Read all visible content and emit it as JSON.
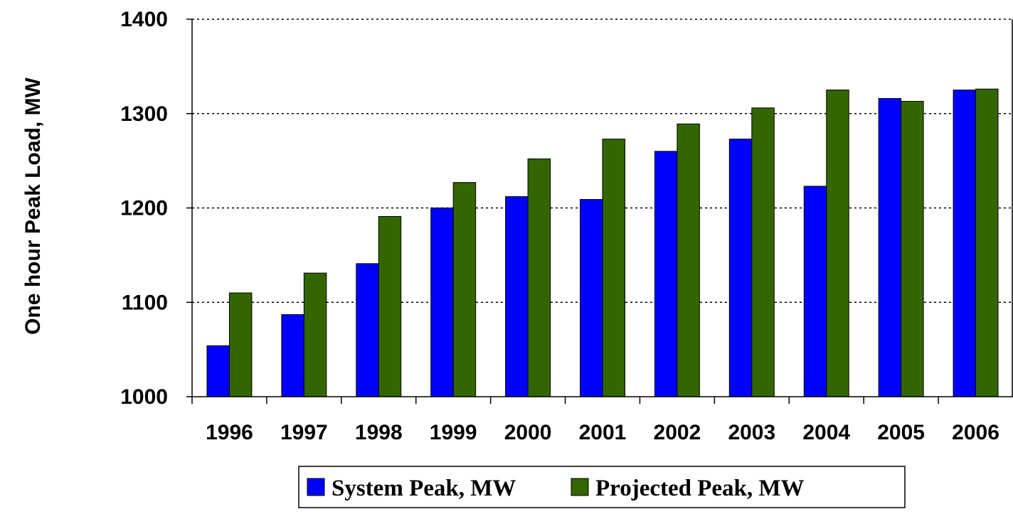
{
  "chart_data": {
    "type": "bar",
    "y_label": "One hour Peak Load, MW",
    "categories": [
      "1996",
      "1997",
      "1998",
      "1999",
      "2000",
      "2001",
      "2002",
      "2003",
      "2004",
      "2005",
      "2006"
    ],
    "series": [
      {
        "name": "System Peak, MW",
        "color": "#0000ff",
        "values": [
          1054,
          1087,
          1141,
          1200,
          1212,
          1209,
          1260,
          1273,
          1223,
          1316,
          1325
        ]
      },
      {
        "name": "Projected Peak, MW",
        "color": "#336600",
        "values": [
          1110,
          1131,
          1191,
          1227,
          1252,
          1273,
          1289,
          1306,
          1325,
          1313,
          1326
        ]
      }
    ],
    "ylim": [
      1000,
      1400
    ],
    "yticks": [
      1000,
      1100,
      1200,
      1300,
      1400
    ],
    "grid": true
  }
}
